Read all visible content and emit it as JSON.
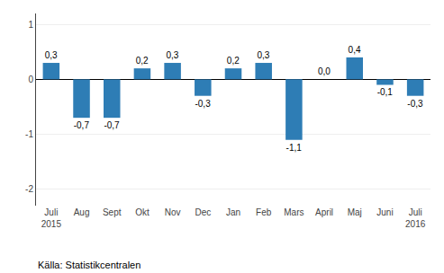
{
  "chart_data": {
    "type": "bar",
    "categories": [
      "Juli\n2015",
      "Aug",
      "Sept",
      "Okt",
      "Nov",
      "Dec",
      "Jan",
      "Feb",
      "Mars",
      "April",
      "Maj",
      "Juni",
      "Juli\n2016"
    ],
    "values": [
      0.3,
      -0.7,
      -0.7,
      0.2,
      0.3,
      -0.3,
      0.2,
      0.3,
      -1.1,
      0.0,
      0.4,
      -0.1,
      -0.3
    ],
    "value_labels": [
      "0,3",
      "-0,7",
      "-0,7",
      "0,2",
      "0,3",
      "-0,3",
      "0,2",
      "0,3",
      "-1,1",
      "0,0",
      "0,4",
      "-0,1",
      "-0,3"
    ],
    "data_labels": true,
    "color": "#2e7db5",
    "ylim": [
      -2.3,
      1.2
    ],
    "yticks": [
      -2,
      -1,
      0,
      1
    ],
    "grid": true,
    "annotations": [
      "Källa: Statistikcentralen"
    ]
  }
}
